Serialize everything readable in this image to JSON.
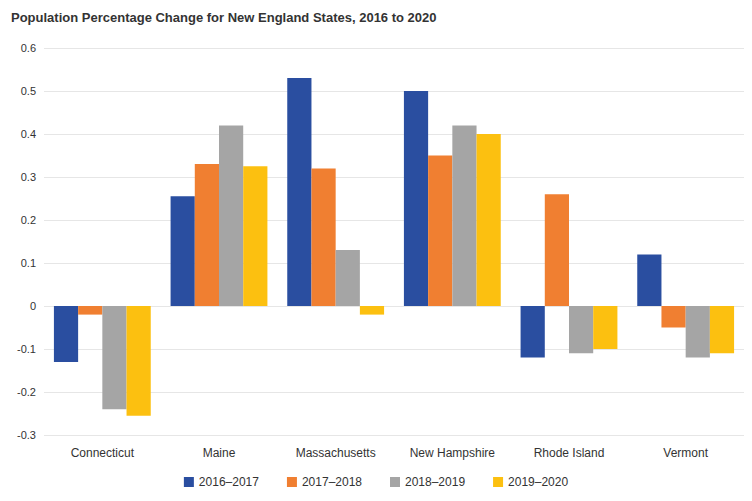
{
  "chart_data": {
    "type": "bar",
    "title": "Population Percentage Change for New England States, 2016 to 2020",
    "categories": [
      "Connecticut",
      "Maine",
      "Massachusetts",
      "New Hampshire",
      "Rhode Island",
      "Vermont"
    ],
    "series": [
      {
        "name": "2016–2017",
        "color": "#2a4ea0",
        "values": [
          -0.13,
          0.255,
          0.53,
          0.5,
          -0.12,
          0.12
        ]
      },
      {
        "name": "2017–2018",
        "color": "#f07f31",
        "values": [
          -0.02,
          0.33,
          0.32,
          0.35,
          0.26,
          -0.05
        ]
      },
      {
        "name": "2018–2019",
        "color": "#a5a5a5",
        "values": [
          -0.24,
          0.42,
          0.13,
          0.42,
          -0.11,
          -0.12
        ]
      },
      {
        "name": "2019–2020",
        "color": "#fcc010",
        "values": [
          -0.255,
          0.325,
          -0.02,
          0.4,
          -0.1,
          -0.11
        ]
      }
    ],
    "ylim": [
      -0.3,
      0.6
    ],
    "yticks": [
      -0.3,
      -0.2,
      -0.1,
      0,
      0.1,
      0.2,
      0.3,
      0.4,
      0.5,
      0.6
    ],
    "grid": true,
    "legend": "bottom"
  }
}
